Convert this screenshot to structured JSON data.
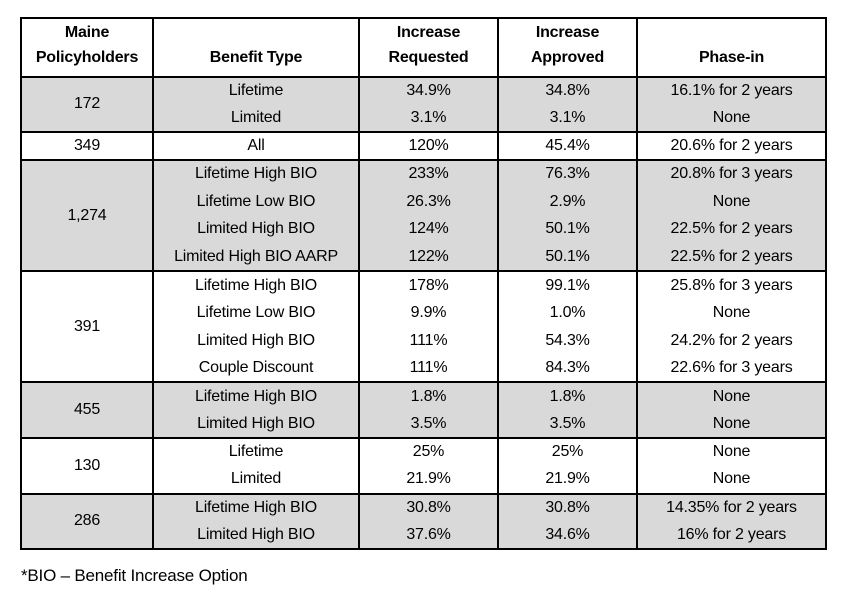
{
  "page": {
    "background_color": "#ffffff",
    "text_color": "#000000",
    "shaded_row_color": "#d9d9d9",
    "border_color": "#000000"
  },
  "table": {
    "headers": [
      {
        "id": "maine-policyholders",
        "lines": [
          "Maine",
          "Policyholders"
        ]
      },
      {
        "id": "benefit-type",
        "lines": [
          "Benefit Type"
        ]
      },
      {
        "id": "increase-requested",
        "lines": [
          "Increase",
          "Requested"
        ]
      },
      {
        "id": "increase-approved",
        "lines": [
          "Increase",
          "Approved"
        ]
      },
      {
        "id": "phase-in",
        "lines": [
          "Phase-in"
        ]
      }
    ],
    "groups": [
      {
        "policyholders": "172",
        "shaded": true,
        "rows": [
          {
            "benefit_type": "Lifetime",
            "increase_requested": "34.9%",
            "increase_approved": "34.8%",
            "phase_in": "16.1% for 2 years"
          },
          {
            "benefit_type": "Limited",
            "increase_requested": "3.1%",
            "increase_approved": "3.1%",
            "phase_in": "None"
          }
        ]
      },
      {
        "policyholders": "349",
        "shaded": false,
        "rows": [
          {
            "benefit_type": "All",
            "increase_requested": "120%",
            "increase_approved": "45.4%",
            "phase_in": "20.6% for 2 years"
          }
        ]
      },
      {
        "policyholders": "1,274",
        "shaded": true,
        "rows": [
          {
            "benefit_type": "Lifetime High BIO",
            "increase_requested": "233%",
            "increase_approved": "76.3%",
            "phase_in": "20.8% for 3 years"
          },
          {
            "benefit_type": "Lifetime Low BIO",
            "increase_requested": "26.3%",
            "increase_approved": "2.9%",
            "phase_in": "None"
          },
          {
            "benefit_type": "Limited High BIO",
            "increase_requested": "124%",
            "increase_approved": "50.1%",
            "phase_in": "22.5% for 2 years"
          },
          {
            "benefit_type": "Limited High BIO AARP",
            "increase_requested": "122%",
            "increase_approved": "50.1%",
            "phase_in": "22.5% for 2 years"
          }
        ]
      },
      {
        "policyholders": "391",
        "shaded": false,
        "rows": [
          {
            "benefit_type": "Lifetime High BIO",
            "increase_requested": "178%",
            "increase_approved": "99.1%",
            "phase_in": "25.8% for 3 years"
          },
          {
            "benefit_type": "Lifetime Low BIO",
            "increase_requested": "9.9%",
            "increase_approved": "1.0%",
            "phase_in": "None"
          },
          {
            "benefit_type": "Limited High BIO",
            "increase_requested": "111%",
            "increase_approved": "54.3%",
            "phase_in": "24.2% for 2 years"
          },
          {
            "benefit_type": "Couple Discount",
            "increase_requested": "111%",
            "increase_approved": "84.3%",
            "phase_in": "22.6% for 3 years"
          }
        ]
      },
      {
        "policyholders": "455",
        "shaded": true,
        "rows": [
          {
            "benefit_type": "Lifetime High BIO",
            "increase_requested": "1.8%",
            "increase_approved": "1.8%",
            "phase_in": "None"
          },
          {
            "benefit_type": "Limited High BIO",
            "increase_requested": "3.5%",
            "increase_approved": "3.5%",
            "phase_in": "None"
          }
        ]
      },
      {
        "policyholders": "130",
        "shaded": false,
        "rows": [
          {
            "benefit_type": "Lifetime",
            "increase_requested": "25%",
            "increase_approved": "25%",
            "phase_in": "None"
          },
          {
            "benefit_type": "Limited",
            "increase_requested": "21.9%",
            "increase_approved": "21.9%",
            "phase_in": "None"
          }
        ]
      },
      {
        "policyholders": "286",
        "shaded": true,
        "rows": [
          {
            "benefit_type": "Lifetime High BIO",
            "increase_requested": "30.8%",
            "increase_approved": "30.8%",
            "phase_in": "14.35% for 2 years"
          },
          {
            "benefit_type": "Limited High BIO",
            "increase_requested": "37.6%",
            "increase_approved": "34.6%",
            "phase_in": "16% for 2 years"
          }
        ]
      }
    ]
  },
  "footnote": "*BIO – Benefit Increase Option"
}
